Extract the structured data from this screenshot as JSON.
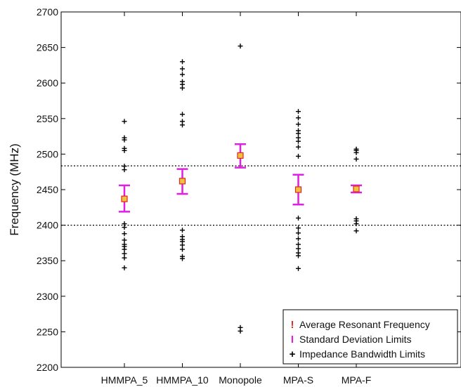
{
  "chart_data": {
    "type": "scatter",
    "ylabel": "Frequency (MHz)",
    "xlabel": "",
    "ylim": [
      2200,
      2700
    ],
    "yticks": [
      "2200",
      "2250",
      "2300",
      "2350",
      "2400",
      "2450",
      "2500",
      "2550",
      "2600",
      "2650",
      "2700"
    ],
    "categories": [
      "HMMPA_5",
      "HMMPA_10",
      "Monopole",
      "MPA-S",
      "MPA-F"
    ],
    "reference_lines": [
      2400,
      2483.5
    ],
    "series": [
      {
        "name": "Average Resonant Frequency",
        "color": "#e0281e",
        "values": [
          2437,
          2462,
          2498,
          2450,
          2451
        ]
      },
      {
        "name": "Standard Deviation Limits",
        "color": "#e020e0",
        "values": [
          [
            2419,
            2456
          ],
          [
            2444,
            2479
          ],
          [
            2481,
            2514
          ],
          [
            2429,
            2471
          ],
          [
            2446,
            2456
          ]
        ]
      },
      {
        "name": "Impedance Bandwidth Limits",
        "color": "#000000",
        "values": [
          [
            2340,
            2354,
            2360,
            2366,
            2370,
            2373,
            2379,
            2388,
            2397,
            2402,
            2478,
            2483,
            2505,
            2508,
            2520,
            2523,
            2546
          ],
          [
            2353,
            2356,
            2366,
            2372,
            2377,
            2380,
            2384,
            2393,
            2541,
            2546,
            2556,
            2593,
            2598,
            2602,
            2612,
            2620,
            2630
          ],
          [
            2251,
            2256,
            2652
          ],
          [
            2339,
            2357,
            2361,
            2367,
            2373,
            2381,
            2389,
            2396,
            2410,
            2497,
            2510,
            2518,
            2523,
            2529,
            2533,
            2542,
            2551,
            2560
          ],
          [
            2392,
            2402,
            2406,
            2409,
            2493,
            2502,
            2505,
            2507
          ]
        ]
      }
    ],
    "legend": {
      "position": "bottom-right",
      "entries": [
        {
          "symbol": "!",
          "color": "#e0281e",
          "label": "Average Resonant Frequency"
        },
        {
          "symbol": "I",
          "color": "#e020e0",
          "label": "Standard Deviation Limits"
        },
        {
          "symbol": "+",
          "color": "#000000",
          "label": "Impedance Bandwidth Limits"
        }
      ]
    }
  }
}
